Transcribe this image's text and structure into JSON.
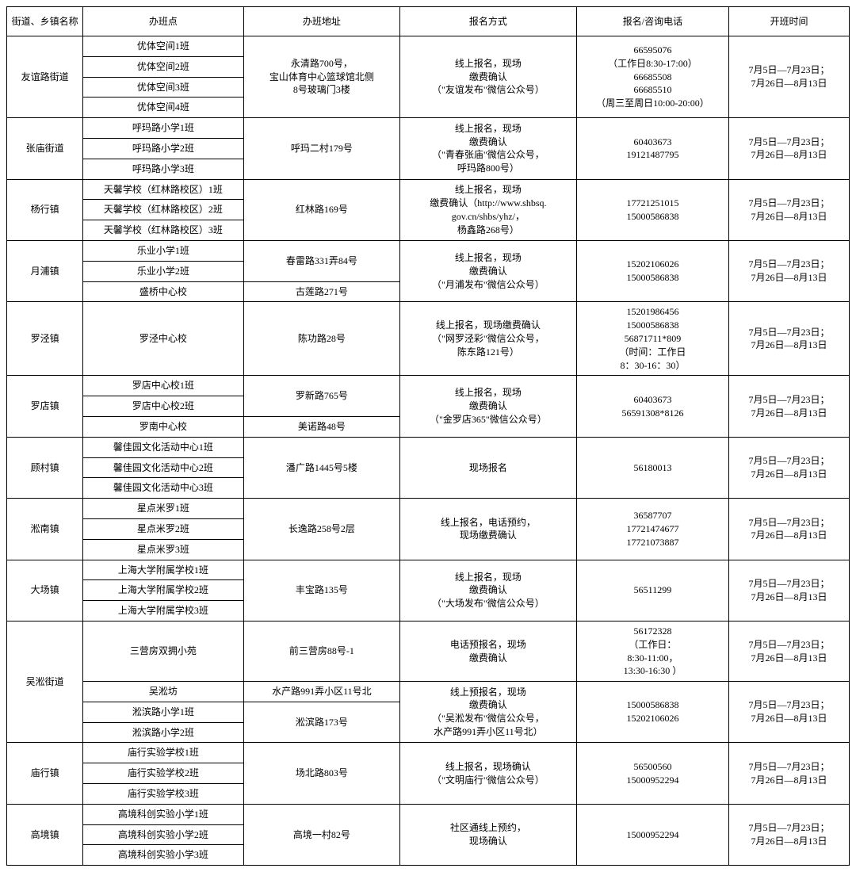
{
  "headers": [
    "街道、乡镇名称",
    "办班点",
    "办班地址",
    "报名方式",
    "报名/咨询电话",
    "开班时间"
  ],
  "common_time": "7月5日—7月23日；\n7月26日—8月13日",
  "groups": [
    {
      "district": "友谊路街道",
      "classes": [
        "优体空间1班",
        "优体空间2班",
        "优体空间3班",
        "优体空间4班"
      ],
      "addresses": [
        {
          "text": "永清路700号，\n宝山体育中心篮球馆北侧\n8号玻璃门3楼",
          "rowspan": 4
        }
      ],
      "method": "线上报名，现场\n缴费确认\n（\"友谊发布\"微信公众号）",
      "phone": "66595076\n（工作日8:30-17:00）\n66685508\n66685510\n（周三至周日10:00-20:00）"
    },
    {
      "district": "张庙街道",
      "classes": [
        "呼玛路小学1班",
        "呼玛路小学2班",
        "呼玛路小学3班"
      ],
      "addresses": [
        {
          "text": "呼玛二村179号",
          "rowspan": 3
        }
      ],
      "method": "线上报名，现场\n缴费确认\n（\"青春张庙\"微信公众号，\n呼玛路800号）",
      "phone": "60403673\n19121487795"
    },
    {
      "district": "杨行镇",
      "classes": [
        "天馨学校（红林路校区）1班",
        "天馨学校（红林路校区）2班",
        "天馨学校（红林路校区）3班"
      ],
      "addresses": [
        {
          "text": "红林路169号",
          "rowspan": 3
        }
      ],
      "method": "线上报名，现场\n缴费确认（http://www.shbsq.\ngov.cn/shbs/yhz/，\n杨鑫路268号）",
      "phone": "17721251015\n15000586838"
    },
    {
      "district": "月浦镇",
      "classes": [
        "乐业小学1班",
        "乐业小学2班",
        "盛桥中心校"
      ],
      "addresses": [
        {
          "text": "春雷路331弄84号",
          "rowspan": 2
        },
        {
          "text": "古莲路271号",
          "rowspan": 1
        }
      ],
      "method": "线上报名，现场\n缴费确认\n（\"月浦发布\"微信公众号）",
      "phone": "15202106026\n15000586838"
    },
    {
      "district": "罗泾镇",
      "classes": [
        "罗泾中心校"
      ],
      "addresses": [
        {
          "text": "陈功路28号",
          "rowspan": 1
        }
      ],
      "method": "线上报名，现场缴费确认\n（\"网罗泾彩\"微信公众号，\n陈东路121号）",
      "phone": "15201986456\n15000586838\n56871711*809\n（时间：工作日\n8：30-16：30）"
    },
    {
      "district": "罗店镇",
      "classes": [
        "罗店中心校1班",
        "罗店中心校2班",
        "罗南中心校"
      ],
      "addresses": [
        {
          "text": "罗新路765号",
          "rowspan": 2
        },
        {
          "text": "美诺路48号",
          "rowspan": 1
        }
      ],
      "method": "线上报名，现场\n缴费确认\n（\"金罗店365\"微信公众号）",
      "phone": "60403673\n56591308*8126"
    },
    {
      "district": "顾村镇",
      "classes": [
        "馨佳园文化活动中心1班",
        "馨佳园文化活动中心2班",
        "馨佳园文化活动中心3班"
      ],
      "addresses": [
        {
          "text": "潘广路1445号5楼",
          "rowspan": 3
        }
      ],
      "method": "现场报名",
      "phone": "56180013"
    },
    {
      "district": "淞南镇",
      "classes": [
        "星点米罗1班",
        "星点米罗2班",
        "星点米罗3班"
      ],
      "addresses": [
        {
          "text": "长逸路258号2层",
          "rowspan": 3
        }
      ],
      "method": "线上报名，电话预约，\n现场缴费确认",
      "phone": "36587707\n17721474677\n17721073887"
    },
    {
      "district": "大场镇",
      "classes": [
        "上海大学附属学校1班",
        "上海大学附属学校2班",
        "上海大学附属学校3班"
      ],
      "addresses": [
        {
          "text": "丰宝路135号",
          "rowspan": 3
        }
      ],
      "method": "线上报名，现场\n缴费确认\n（\"大场发布\"微信公众号）",
      "phone": "56511299"
    },
    {
      "district": "庙行镇",
      "classes": [
        "庙行实验学校1班",
        "庙行实验学校2班",
        "庙行实验学校3班"
      ],
      "addresses": [
        {
          "text": "场北路803号",
          "rowspan": 3
        }
      ],
      "method": "线上报名，现场确认\n（\"文明庙行\"微信公众号）",
      "phone": "56500560\n15000952294"
    },
    {
      "district": "高境镇",
      "classes": [
        "高境科创实验小学1班",
        "高境科创实验小学2班",
        "高境科创实验小学3班"
      ],
      "addresses": [
        {
          "text": "高境一村82号",
          "rowspan": 3
        }
      ],
      "method": "社区通线上预约，\n现场确认",
      "phone": "15000952294"
    }
  ],
  "wusong": {
    "district": "吴淞街道",
    "rows": [
      {
        "cls": "三营房双拥小苑",
        "addr": "前三营房88号-1",
        "addr_rowspan": 1,
        "method": "电话预报名，现场\n缴费确认",
        "method_rowspan": 1,
        "phone": "56172328\n（工作日：\n8:30-11:00，\n13:30-16:30 ）",
        "phone_rowspan": 1,
        "time_rowspan": 1
      },
      {
        "cls": "吴淞坊",
        "addr": "水产路991弄小区11号北",
        "addr_rowspan": 1,
        "method": "线上预报名，现场\n缴费确认\n（\"吴淞发布\"微信公众号，\n水产路991弄小区11号北）",
        "method_rowspan": 3,
        "phone": "15000586838\n15202106026",
        "phone_rowspan": 3,
        "time_rowspan": 3
      },
      {
        "cls": "淞滨路小学1班",
        "addr": "淞滨路173号",
        "addr_rowspan": 2
      },
      {
        "cls": "淞滨路小学2班"
      }
    ]
  }
}
